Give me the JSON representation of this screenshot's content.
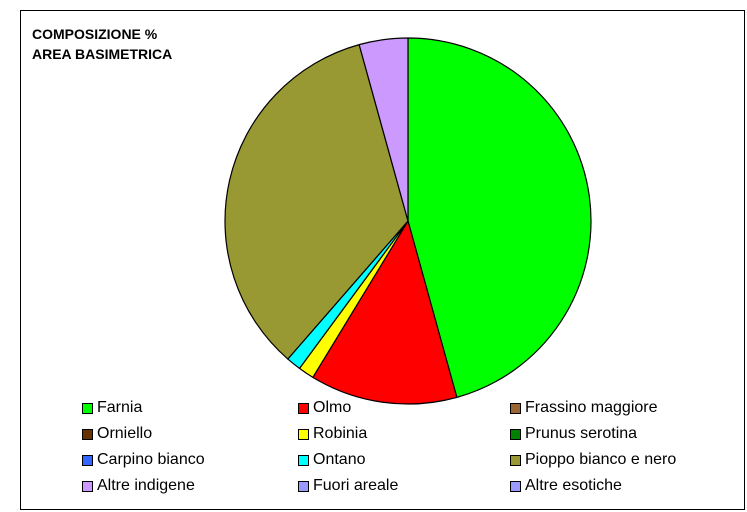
{
  "chart_data": {
    "type": "pie",
    "title_lines": [
      "COMPOSIZIONE %",
      "AREA BASIMETRICA"
    ],
    "categories": [
      "Farnia",
      "Olmo",
      "Frassino maggiore",
      "Orniello",
      "Robinia",
      "Prunus serotina",
      "Carpino bianco",
      "Ontano",
      "Pioppo bianco e nero",
      "Altre indigene",
      "Fuori areale",
      "Altre esotiche"
    ],
    "values": [
      45.7,
      13.0,
      0,
      0,
      1.4,
      0,
      0,
      1.3,
      34.3,
      4.3,
      0,
      0
    ],
    "colors": [
      "#00ff00",
      "#ff0000",
      "#996633",
      "#663300",
      "#ffff00",
      "#008000",
      "#3366ff",
      "#00ffff",
      "#999933",
      "#cc99ff",
      "#9999ff",
      "#9999ff"
    ],
    "legend_position": "bottom",
    "start_angle_deg": 0,
    "direction": "clockwise"
  }
}
